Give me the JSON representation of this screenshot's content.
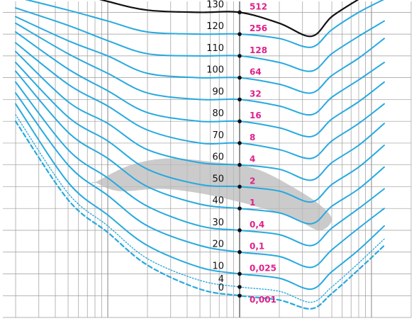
{
  "chart_data": {
    "type": "line",
    "x_scale": "log",
    "xlim": [
      16,
      20000
    ],
    "ylim": [
      -10,
      135
    ],
    "grid": true,
    "legend": "none",
    "title": "",
    "xlabel": "",
    "ylabel": "",
    "colors": {
      "curve": "#27a9df",
      "threshold_of_pain": "#111111",
      "sone_label": "#e0208c",
      "grid": "#9a9a9a",
      "speech_region": "#b9b9b9"
    },
    "reference_frequency_hz": 1000,
    "frequencies_hz": [
      20,
      50,
      100,
      200,
      500,
      1000,
      2000,
      3500,
      5000,
      8000,
      12500
    ],
    "phon_labels": [
      "130",
      "120",
      "110",
      "100",
      "90",
      "80",
      "70",
      "60",
      "50",
      "40",
      "30",
      "20",
      "10",
      "4",
      "0"
    ],
    "sone_labels": [
      "512",
      "256",
      "128",
      "64",
      "32",
      "16",
      "8",
      "4",
      "2",
      "1",
      "0,4",
      "0,1",
      "0,025",
      "0,001"
    ],
    "series": [
      {
        "phon": 130,
        "kind": "pain",
        "values": [
          null,
          140,
          135,
          131,
          130,
          130,
          125,
          119,
          128,
          136,
          null
        ]
      },
      {
        "phon": 120,
        "values": [
          137,
          131,
          126,
          121,
          120,
          120,
          118,
          114,
          122,
          130,
          136
        ]
      },
      {
        "phon": 110,
        "values": [
          132,
          124,
          117,
          111,
          110,
          110,
          107,
          103,
          111,
          119,
          126
        ]
      },
      {
        "phon": 100,
        "values": [
          128,
          117,
          110,
          102,
          100,
          100,
          97,
          93,
          101,
          109,
          118
        ]
      },
      {
        "phon": 90,
        "values": [
          125,
          111,
          102,
          93,
          90,
          90,
          87,
          83,
          91,
          99,
          107
        ]
      },
      {
        "phon": 80,
        "values": [
          121,
          104,
          94,
          84,
          80,
          80,
          77,
          73,
          81,
          89,
          98
        ]
      },
      {
        "phon": 70,
        "values": [
          116,
          97,
          87,
          76,
          70,
          70,
          67,
          63,
          71,
          79,
          88
        ]
      },
      {
        "phon": 60,
        "values": [
          112,
          89,
          79,
          67,
          61,
          60,
          58,
          53,
          61,
          69,
          79
        ]
      },
      {
        "phon": 50,
        "values": [
          107,
          82,
          71,
          58,
          51,
          50,
          48,
          43,
          51,
          59,
          69
        ]
      },
      {
        "phon": 40,
        "values": [
          103,
          75,
          63,
          50,
          42,
          40,
          38,
          33,
          41,
          49,
          59
        ]
      },
      {
        "phon": 30,
        "values": [
          98,
          67,
          54,
          41,
          32,
          30,
          28,
          23,
          31,
          40,
          49
        ]
      },
      {
        "phon": 20,
        "values": [
          93,
          60,
          46,
          32,
          23,
          20,
          18,
          13,
          21,
          31,
          40
        ]
      },
      {
        "phon": 10,
        "values": [
          88,
          52,
          37,
          23,
          13,
          10,
          8,
          3,
          11,
          21,
          32
        ]
      },
      {
        "phon": 4,
        "kind": "dotted",
        "values": [
          83,
          47,
          32,
          17,
          7,
          4,
          2,
          -3,
          4,
          15,
          26
        ]
      },
      {
        "phon": 0,
        "kind": "dashed",
        "values": [
          80,
          44,
          29,
          14,
          3,
          0,
          -2,
          -6,
          1,
          12,
          23
        ]
      }
    ],
    "speech_region": {
      "frequencies_hz": [
        80,
        150,
        300,
        700,
        1000,
        1500,
        2500,
        4000,
        5000,
        4000,
        2500,
        1500,
        1000,
        500,
        250,
        120,
        80
      ],
      "values": [
        52,
        60,
        63,
        61,
        60,
        57,
        50,
        42,
        35,
        30,
        36,
        40,
        43,
        47,
        49,
        48,
        52
      ]
    }
  }
}
